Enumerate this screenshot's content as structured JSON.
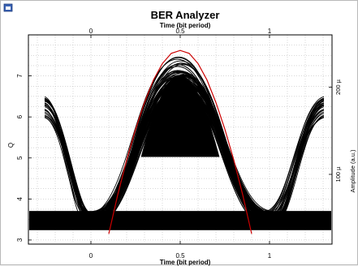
{
  "window": {
    "icon": "chart-window-icon"
  },
  "chart_data": {
    "type": "line",
    "title": "BER Analyzer",
    "top_axis_label": "Time (bit period)",
    "bottom_axis_label": "Time (bit period)",
    "left_axis_label": "Q",
    "right_axis_label": "Amplitude (a.u.)",
    "xlim": [
      -0.35,
      1.35
    ],
    "x_ticks": [
      0,
      0.5,
      1
    ],
    "x_tick_labels": [
      "0",
      "0.5",
      "1"
    ],
    "left_ylim": [
      2.9,
      8.0
    ],
    "left_y_ticks": [
      3,
      4,
      5,
      6,
      7
    ],
    "left_y_tick_labels": [
      "3",
      "4",
      "5",
      "6",
      "7"
    ],
    "right_ylim": [
      2e-05,
      0.00026
    ],
    "right_y_ticks": [
      0.0001,
      0.0002
    ],
    "right_y_tick_labels": [
      "100 µ",
      "200 µ"
    ],
    "grid": true,
    "series": [
      {
        "role": "Q factor curve",
        "color": "#cc0000",
        "x": [
          0.1,
          0.15,
          0.2,
          0.25,
          0.3,
          0.35,
          0.4,
          0.45,
          0.5,
          0.55,
          0.6,
          0.65,
          0.7,
          0.75,
          0.8,
          0.85,
          0.9
        ],
        "y": [
          3.15,
          4.1,
          4.95,
          5.7,
          6.35,
          6.9,
          7.3,
          7.55,
          7.62,
          7.55,
          7.3,
          6.9,
          6.35,
          5.7,
          4.95,
          4.1,
          3.15
        ]
      }
    ],
    "eye_diagram": {
      "color": "#000000",
      "one_level_amplitude": [
        0.000205,
        0.000218
      ],
      "zero_level_amplitude": [
        4e-05,
        5.8e-05
      ]
    }
  }
}
